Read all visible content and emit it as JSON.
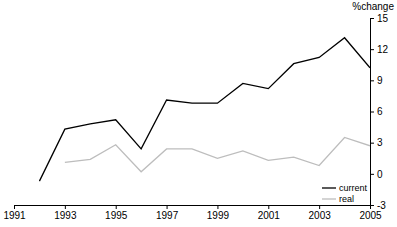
{
  "chart_data": {
    "type": "line",
    "y_label": "%change",
    "x": [
      1991,
      1992,
      1993,
      1994,
      1995,
      1996,
      1997,
      1998,
      1999,
      2000,
      2001,
      2002,
      2003,
      2004,
      2005
    ],
    "series": [
      {
        "name": "current",
        "color": "#000000",
        "values": [
          null,
          -0.7,
          4.3,
          4.8,
          5.2,
          2.4,
          7.1,
          6.8,
          6.8,
          8.7,
          8.2,
          10.6,
          11.2,
          13.1,
          10.2
        ]
      },
      {
        "name": "real",
        "color": "#bdbdbd",
        "values": [
          null,
          null,
          1.1,
          1.4,
          2.8,
          0.2,
          2.4,
          2.4,
          1.5,
          2.2,
          1.3,
          1.6,
          0.8,
          3.5,
          2.7
        ]
      }
    ],
    "xlim": [
      1991,
      2005
    ],
    "xticks": [
      1991,
      1993,
      1995,
      1997,
      1999,
      2001,
      2003,
      2005
    ],
    "ylim": [
      -3,
      15
    ],
    "yticks": [
      -3,
      0,
      3,
      6,
      9,
      12,
      15
    ],
    "grid": false,
    "legend": "bottom-right"
  }
}
